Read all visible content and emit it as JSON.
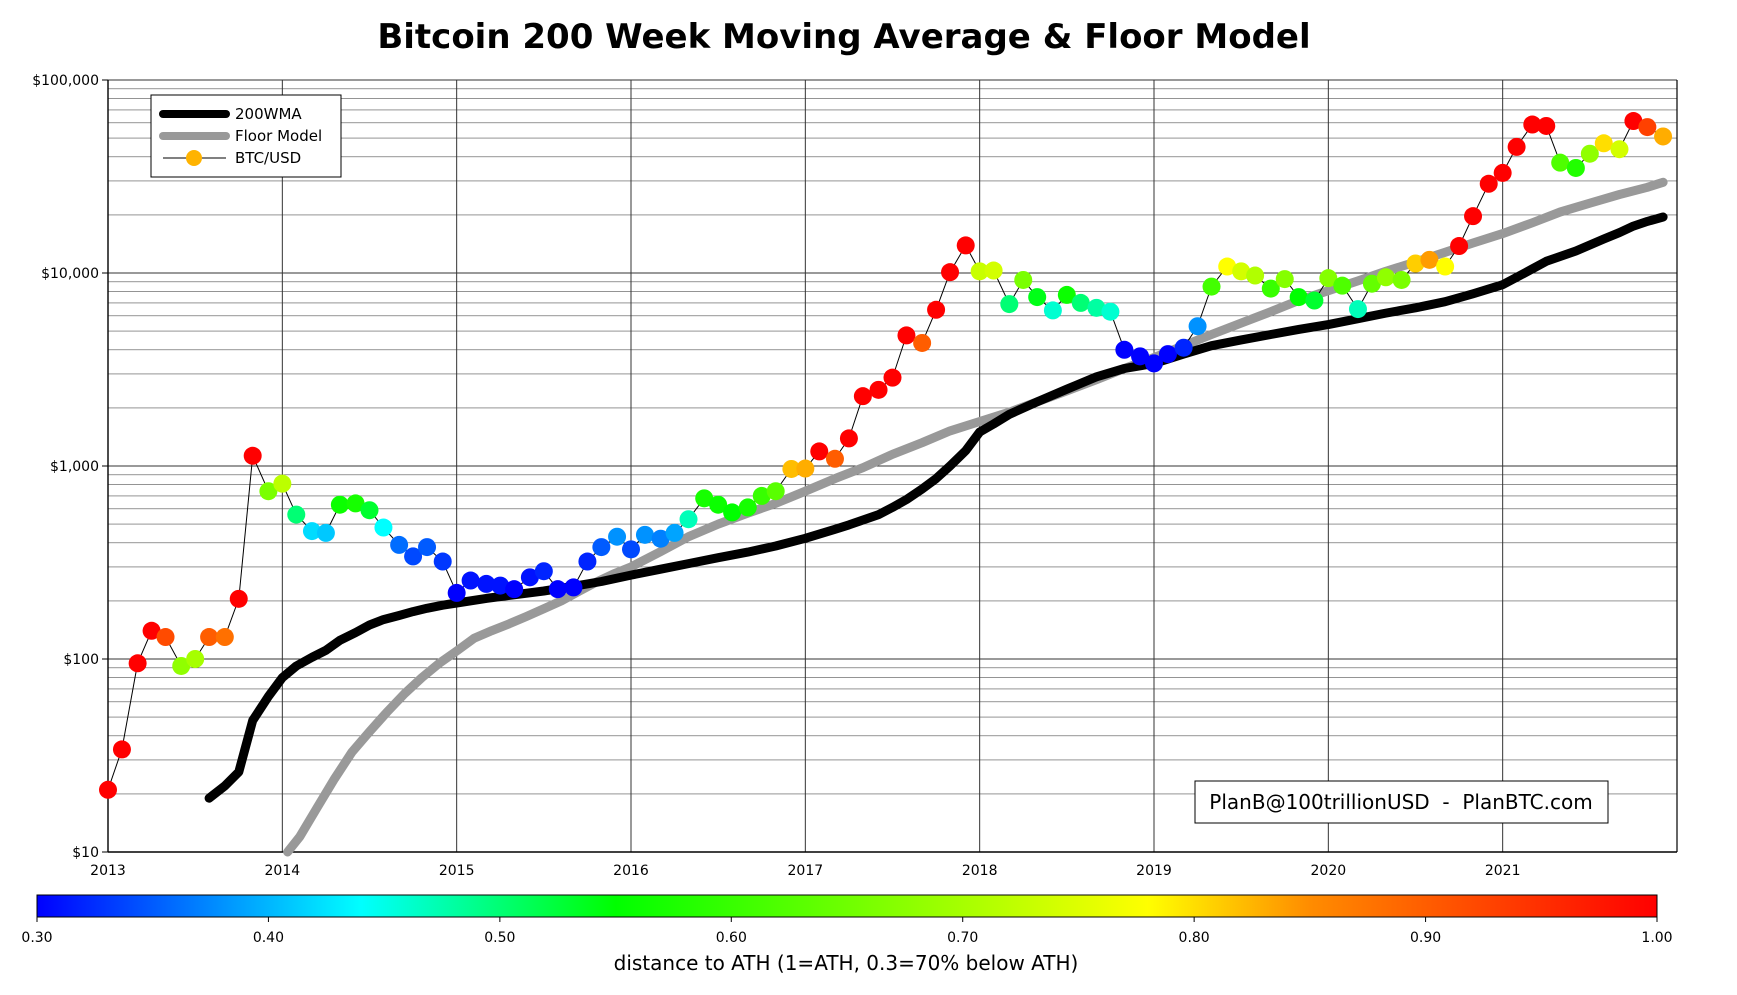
{
  "chart_data": {
    "type": "scatter",
    "title": "Bitcoin 200 Week Moving Average & Floor Model",
    "y_scale": "log",
    "ylim": [
      10,
      100000
    ],
    "xlim": [
      2013.0,
      2022.0
    ],
    "y_ticks": [
      {
        "value": 10,
        "label": "$10"
      },
      {
        "value": 100,
        "label": "$100"
      },
      {
        "value": 1000,
        "label": "$1,000"
      },
      {
        "value": 10000,
        "label": "$10,000"
      },
      {
        "value": 100000,
        "label": "$100,000"
      }
    ],
    "x_ticks": [
      {
        "value": 2013,
        "label": "2013"
      },
      {
        "value": 2014,
        "label": "2014"
      },
      {
        "value": 2015,
        "label": "2015"
      },
      {
        "value": 2016,
        "label": "2016"
      },
      {
        "value": 2017,
        "label": "2017"
      },
      {
        "value": 2018,
        "label": "2018"
      },
      {
        "value": 2019,
        "label": "2019"
      },
      {
        "value": 2020,
        "label": "2020"
      },
      {
        "value": 2021,
        "label": "2021"
      }
    ],
    "grid": true,
    "legend_position": "top-left",
    "legend": [
      {
        "label": "200WMA",
        "color": "#000000",
        "style": "thick-line"
      },
      {
        "label": "Floor Model",
        "color": "#999999",
        "style": "thick-line"
      },
      {
        "label": "BTC/USD",
        "color": "#FFB300",
        "style": "line-marker"
      }
    ],
    "annotation": "PlanB@100trillionUSD  -  PlanBTC.com",
    "colorbar": {
      "label": "distance to ATH (1=ATH, 0.3=70% below ATH)",
      "min": 0.3,
      "max": 1.0,
      "ticks": [
        "0.30",
        "0.40",
        "0.50",
        "0.60",
        "0.70",
        "0.80",
        "0.90",
        "1.00"
      ],
      "colors": [
        "#0000ff",
        "#00ffff",
        "#00ff00",
        "#ffff00",
        "#ff8000",
        "#ff0000"
      ]
    },
    "series": [
      {
        "name": "200WMA",
        "color": "#000000",
        "x": [
          2013.58,
          2013.67,
          2013.75,
          2013.83,
          2013.92,
          2014.0,
          2014.08,
          2014.17,
          2014.25,
          2014.33,
          2014.42,
          2014.5,
          2014.58,
          2014.67,
          2014.75,
          2014.83,
          2014.92,
          2015.0,
          2015.17,
          2015.33,
          2015.5,
          2015.67,
          2015.83,
          2016.0,
          2016.17,
          2016.33,
          2016.5,
          2016.67,
          2016.83,
          2017.0,
          2017.17,
          2017.25,
          2017.42,
          2017.5,
          2017.58,
          2017.67,
          2017.75,
          2017.83,
          2017.92,
          2018.0,
          2018.08,
          2018.17,
          2018.33,
          2018.5,
          2018.67,
          2018.83,
          2019.0,
          2019.17,
          2019.33,
          2019.5,
          2019.67,
          2019.83,
          2020.0,
          2020.17,
          2020.33,
          2020.5,
          2020.67,
          2020.83,
          2021.0,
          2021.08,
          2021.17,
          2021.25,
          2021.42,
          2021.58,
          2021.67,
          2021.75,
          2021.83,
          2021.92
        ],
        "y": [
          19,
          22,
          26,
          48,
          64,
          80,
          92,
          102,
          111,
          125,
          137,
          150,
          160,
          168,
          176,
          183,
          190,
          195,
          206,
          215,
          225,
          238,
          252,
          272,
          292,
          312,
          335,
          358,
          385,
          422,
          470,
          495,
          560,
          610,
          670,
          760,
          860,
          1000,
          1200,
          1500,
          1650,
          1850,
          2150,
          2500,
          2900,
          3200,
          3400,
          3800,
          4200,
          4500,
          4800,
          5100,
          5400,
          5800,
          6200,
          6600,
          7100,
          7800,
          8700,
          9500,
          10500,
          11500,
          13000,
          15000,
          16200,
          17500,
          18500,
          19500
        ]
      },
      {
        "name": "Floor Model",
        "color": "#999999",
        "x": [
          2014.03,
          2014.1,
          2014.2,
          2014.3,
          2014.4,
          2014.5,
          2014.6,
          2014.7,
          2014.8,
          2014.9,
          2015.0,
          2015.1,
          2015.2,
          2015.3,
          2015.4,
          2015.5,
          2015.6,
          2015.7,
          2015.8,
          2015.9,
          2016.0,
          2016.17,
          2016.33,
          2016.5,
          2016.67,
          2016.83,
          2017.0,
          2017.17,
          2017.33,
          2017.5,
          2017.67,
          2017.83,
          2018.0,
          2018.17,
          2018.33,
          2018.5,
          2018.67,
          2018.83,
          2019.0,
          2019.17,
          2019.33,
          2019.5,
          2019.67,
          2019.83,
          2020.0,
          2020.17,
          2020.33,
          2020.5,
          2020.67,
          2020.83,
          2021.0,
          2021.17,
          2021.33,
          2021.5,
          2021.67,
          2021.83,
          2021.92
        ],
        "y": [
          10,
          12,
          17,
          24,
          33,
          42,
          53,
          66,
          80,
          95,
          110,
          128,
          140,
          152,
          166,
          182,
          200,
          224,
          250,
          276,
          300,
          360,
          430,
          500,
          570,
          640,
          740,
          860,
          980,
          1150,
          1320,
          1520,
          1700,
          1900,
          2150,
          2450,
          2800,
          3200,
          3650,
          4200,
          4800,
          5500,
          6300,
          7200,
          8100,
          9100,
          10200,
          11400,
          12800,
          14300,
          16000,
          18200,
          20700,
          23000,
          25500,
          27800,
          29500
        ]
      },
      {
        "name": "BTC/USD",
        "color": "#000000",
        "x": [
          2013.0,
          2013.08,
          2013.17,
          2013.25,
          2013.33,
          2013.42,
          2013.5,
          2013.58,
          2013.67,
          2013.75,
          2013.83,
          2013.92,
          2014.0,
          2014.08,
          2014.17,
          2014.25,
          2014.33,
          2014.42,
          2014.5,
          2014.58,
          2014.67,
          2014.75,
          2014.83,
          2014.92,
          2015.0,
          2015.08,
          2015.17,
          2015.25,
          2015.33,
          2015.42,
          2015.5,
          2015.58,
          2015.67,
          2015.75,
          2015.83,
          2015.92,
          2016.0,
          2016.08,
          2016.17,
          2016.25,
          2016.33,
          2016.42,
          2016.5,
          2016.58,
          2016.67,
          2016.75,
          2016.83,
          2016.92,
          2017.0,
          2017.08,
          2017.17,
          2017.25,
          2017.33,
          2017.42,
          2017.5,
          2017.58,
          2017.67,
          2017.75,
          2017.83,
          2017.92,
          2018.0,
          2018.08,
          2018.17,
          2018.25,
          2018.33,
          2018.42,
          2018.5,
          2018.58,
          2018.67,
          2018.75,
          2018.83,
          2018.92,
          2019.0,
          2019.08,
          2019.17,
          2019.25,
          2019.33,
          2019.42,
          2019.5,
          2019.58,
          2019.67,
          2019.75,
          2019.83,
          2019.92,
          2020.0,
          2020.08,
          2020.17,
          2020.25,
          2020.33,
          2020.42,
          2020.5,
          2020.58,
          2020.67,
          2020.75,
          2020.83,
          2020.92,
          2021.0,
          2021.08,
          2021.17,
          2021.25,
          2021.33,
          2021.42,
          2021.5,
          2021.58,
          2021.67,
          2021.75,
          2021.83,
          2021.92
        ],
        "y": [
          21,
          34,
          95,
          140,
          130,
          92,
          100,
          130,
          130,
          205,
          1130,
          740,
          810,
          560,
          460,
          450,
          630,
          640,
          590,
          480,
          390,
          340,
          380,
          320,
          220,
          255,
          245,
          240,
          230,
          265,
          285,
          230,
          235,
          320,
          380,
          430,
          370,
          440,
          420,
          450,
          530,
          680,
          630,
          575,
          610,
          700,
          740,
          965,
          970,
          1190,
          1090,
          1390,
          2300,
          2480,
          2870,
          4750,
          4340,
          6450,
          10100,
          13900,
          10200,
          10300,
          6900,
          9200,
          7500,
          6400,
          7700,
          7000,
          6600,
          6300,
          4000,
          3700,
          3400,
          3800,
          4100,
          5300,
          8500,
          10800,
          10200,
          9700,
          8300,
          9300,
          7500,
          7200,
          9400,
          8600,
          6500,
          8800,
          9500,
          9200,
          11200,
          11700,
          10800,
          13800,
          19700,
          29000,
          33000,
          45000,
          58800,
          57800,
          37300,
          35000,
          41500,
          47000,
          43800,
          61300,
          57000,
          51000
        ],
        "distance_to_ath": [
          1.0,
          1.0,
          1.0,
          1.0,
          0.92,
          0.68,
          0.7,
          0.9,
          0.88,
          1.0,
          1.0,
          0.66,
          0.72,
          0.5,
          0.42,
          0.41,
          0.56,
          0.57,
          0.53,
          0.44,
          0.36,
          0.34,
          0.35,
          0.33,
          0.3,
          0.31,
          0.31,
          0.31,
          0.3,
          0.31,
          0.32,
          0.3,
          0.3,
          0.32,
          0.35,
          0.38,
          0.34,
          0.38,
          0.37,
          0.39,
          0.47,
          0.57,
          0.56,
          0.55,
          0.57,
          0.6,
          0.63,
          0.82,
          0.83,
          1.0,
          0.9,
          1.0,
          1.0,
          1.0,
          1.0,
          1.0,
          0.9,
          1.0,
          1.0,
          1.0,
          0.73,
          0.74,
          0.5,
          0.66,
          0.54,
          0.46,
          0.56,
          0.5,
          0.48,
          0.46,
          0.3,
          0.3,
          0.3,
          0.3,
          0.32,
          0.38,
          0.61,
          0.78,
          0.74,
          0.71,
          0.6,
          0.67,
          0.55,
          0.53,
          0.67,
          0.62,
          0.47,
          0.64,
          0.68,
          0.66,
          0.81,
          0.84,
          0.78,
          1.0,
          1.0,
          1.0,
          1.0,
          1.0,
          1.0,
          1.0,
          0.62,
          0.58,
          0.68,
          0.8,
          0.74,
          1.0,
          0.93,
          0.83
        ]
      }
    ]
  }
}
